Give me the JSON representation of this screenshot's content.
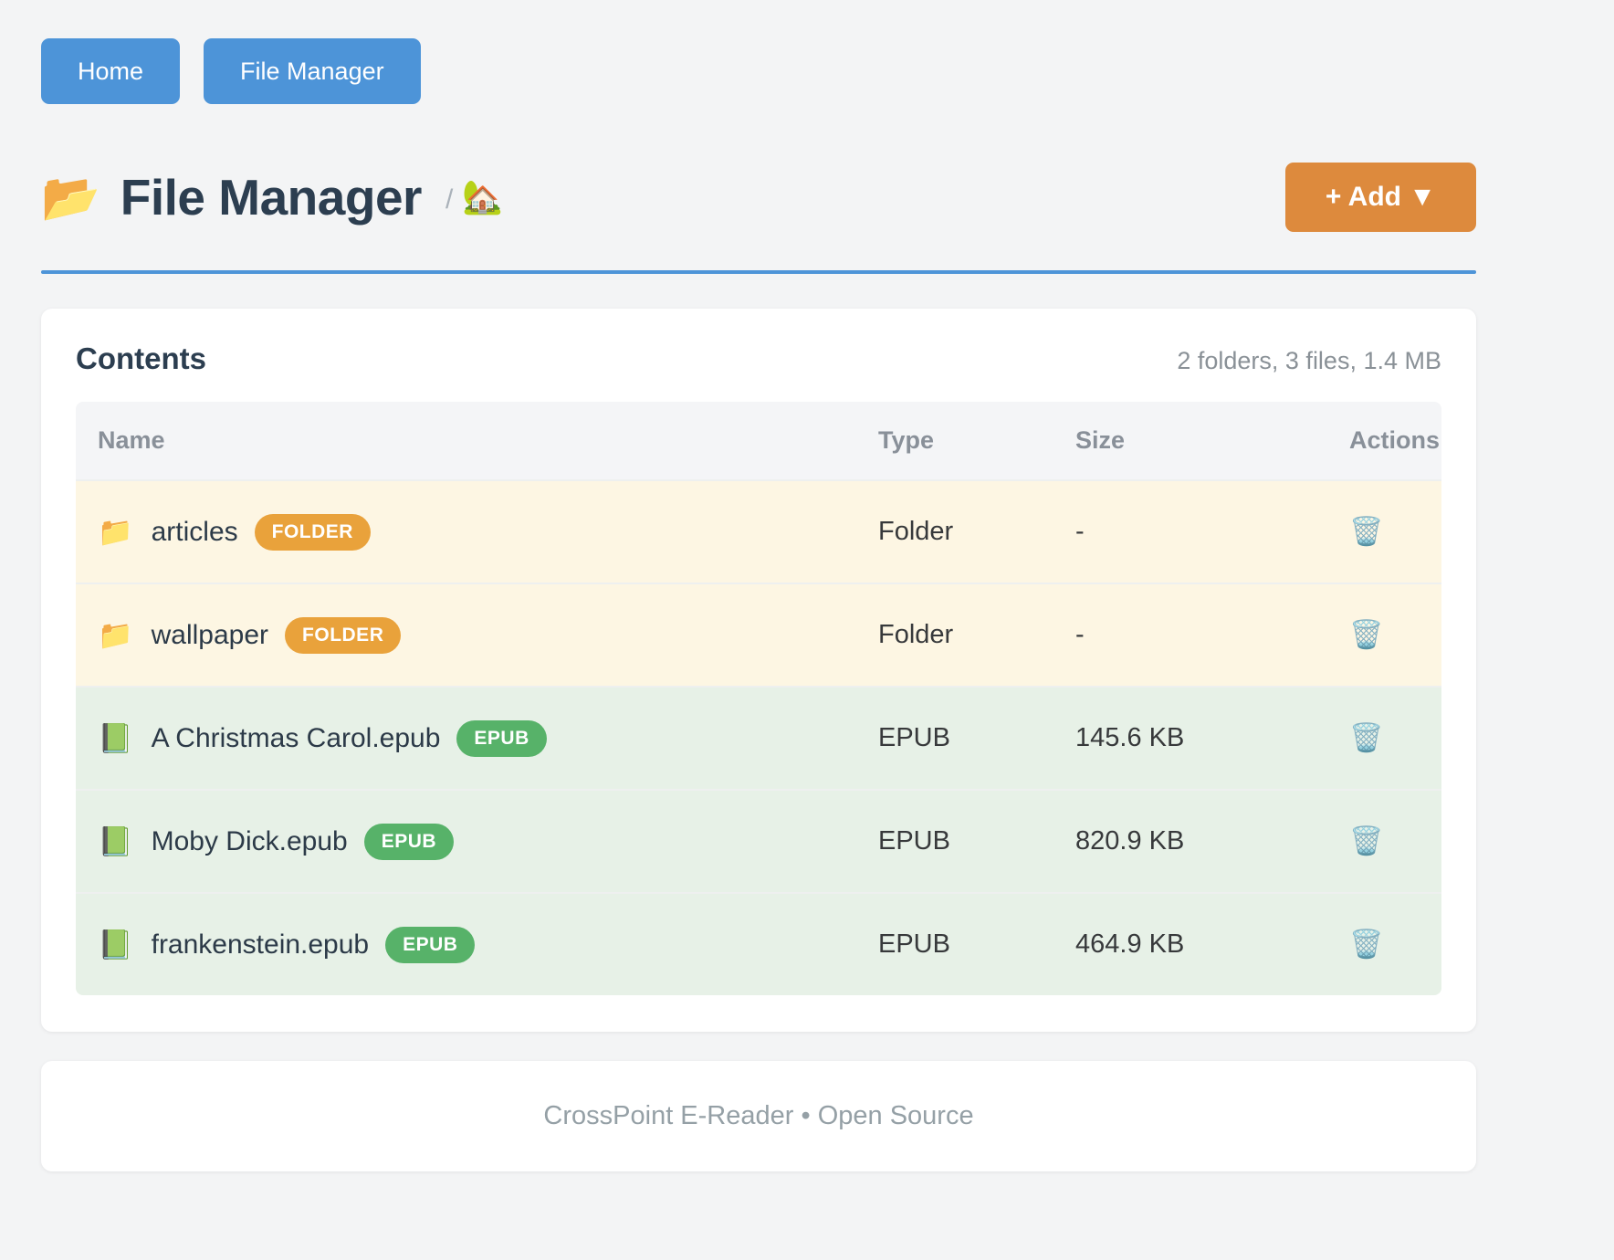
{
  "nav": {
    "buttons": [
      {
        "label": "Home"
      },
      {
        "label": "File Manager"
      }
    ]
  },
  "header": {
    "title_icon": "📂",
    "title": "File Manager",
    "breadcrumb_separator": "/",
    "breadcrumb_home_icon": "🏡",
    "add_button_label": "+ Add ▼"
  },
  "contents_card": {
    "title": "Contents",
    "summary": "2 folders, 3 files, 1.4 MB",
    "table": {
      "columns": [
        "Name",
        "Type",
        "Size",
        "Actions"
      ],
      "rows": [
        {
          "icon": "📁",
          "name": "articles",
          "badge": "FOLDER",
          "badge_type": "folder",
          "type": "Folder",
          "size": "-",
          "action_icon": "🗑️"
        },
        {
          "icon": "📁",
          "name": "wallpaper",
          "badge": "FOLDER",
          "badge_type": "folder",
          "type": "Folder",
          "size": "-",
          "action_icon": "🗑️"
        },
        {
          "icon": "📗",
          "name": "A Christmas Carol.epub",
          "badge": "EPUB",
          "badge_type": "epub",
          "type": "EPUB",
          "size": "145.6 KB",
          "action_icon": "🗑️"
        },
        {
          "icon": "📗",
          "name": "Moby Dick.epub",
          "badge": "EPUB",
          "badge_type": "epub",
          "type": "EPUB",
          "size": "820.9 KB",
          "action_icon": "🗑️"
        },
        {
          "icon": "📗",
          "name": "frankenstein.epub",
          "badge": "EPUB",
          "badge_type": "epub",
          "type": "EPUB",
          "size": "464.9 KB",
          "action_icon": "🗑️"
        }
      ]
    }
  },
  "footer": {
    "text": "CrossPoint E-Reader • Open Source"
  },
  "colors": {
    "nav_button": "#4d94d8",
    "add_button": "#dd8a3d",
    "folder_badge": "#e9a23b",
    "epub_badge": "#57b269",
    "folder_row_bg": "#fdf6e3",
    "epub_row_bg": "#e7f1e7",
    "title_rule": "#4d94d8"
  }
}
